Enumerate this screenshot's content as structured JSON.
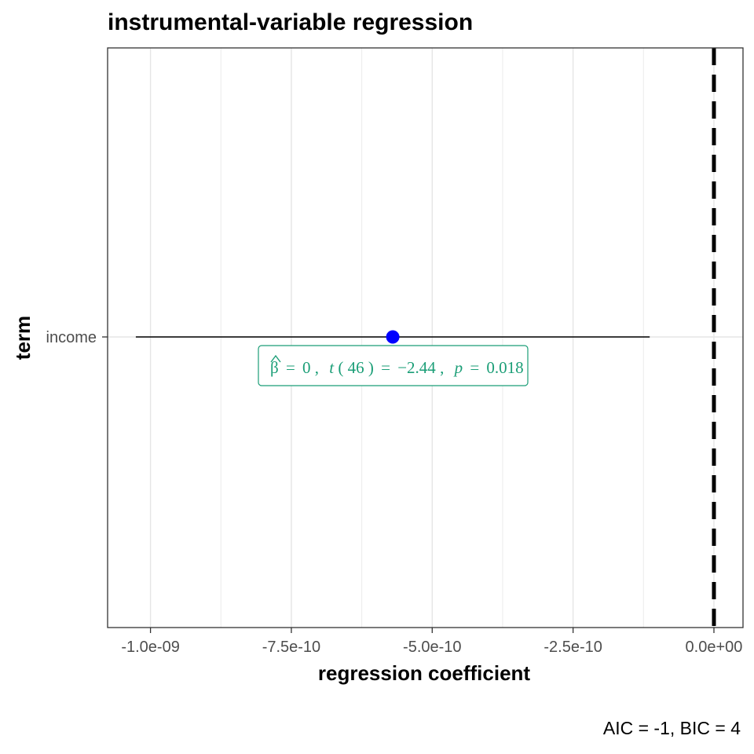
{
  "chart_data": {
    "type": "scatter",
    "title": "instrumental-variable regression",
    "xlabel": "regression coefficient",
    "ylabel": "term",
    "xlim": [
      -1.0761e-09,
      5.16e-11
    ],
    "x_ticks": [
      {
        "value": -1e-09,
        "label": "-1.0e-09"
      },
      {
        "value": -7.5e-10,
        "label": "-7.5e-10"
      },
      {
        "value": -5e-10,
        "label": "-5.0e-10"
      },
      {
        "value": -2.5e-10,
        "label": "-2.5e-10"
      },
      {
        "value": 0,
        "label": "0.0e+00"
      }
    ],
    "x_minor_ticks": [
      -8.75e-10,
      -6.25e-10,
      -3.75e-10,
      -1.25e-10
    ],
    "categories": [
      "income"
    ],
    "points": [
      {
        "term": "income",
        "estimate": -5.7e-10,
        "conf_low": -1.026e-09,
        "conf_high": -1.14e-10
      }
    ],
    "reference_line": {
      "x": 0,
      "style": "dashed"
    },
    "point_color": "#0000ff",
    "label_color": "#1b9e77",
    "label": {
      "beta_symbol": "β",
      "beta_value": "0",
      "t_df": "46",
      "t_value": "−2.44",
      "p_value": "0.018"
    },
    "caption": "AIC = -1, BIC = 4",
    "grid": true
  }
}
